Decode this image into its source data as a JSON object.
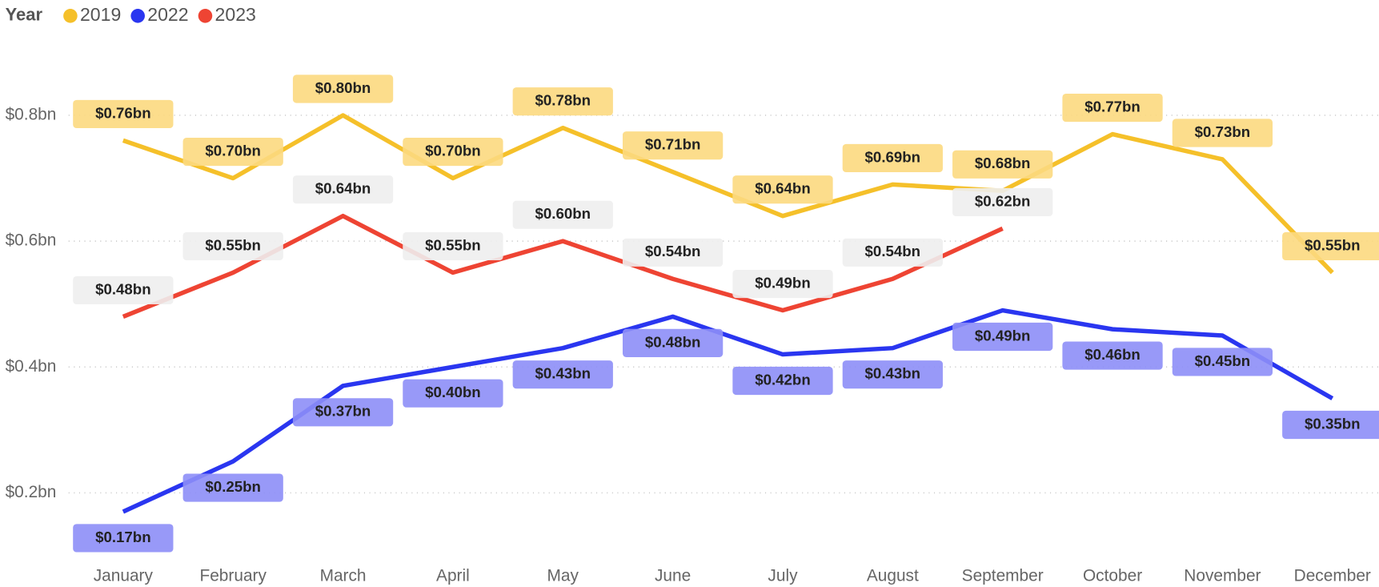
{
  "chart_data": {
    "type": "line",
    "legend_title": "Year",
    "legend": "top-left",
    "categories": [
      "January",
      "February",
      "March",
      "April",
      "May",
      "June",
      "July",
      "August",
      "September",
      "October",
      "November",
      "December"
    ],
    "series": [
      {
        "name": "2019",
        "color": "#f5c02a",
        "label_color": "#fcd97f",
        "values": [
          0.76,
          0.7,
          0.8,
          0.7,
          0.78,
          0.71,
          0.64,
          0.69,
          0.68,
          0.77,
          0.73,
          0.55
        ],
        "value_labels": [
          "$0.76bn",
          "$0.70bn",
          "$0.80bn",
          "$0.70bn",
          "$0.78bn",
          "$0.71bn",
          "$0.64bn",
          "$0.69bn",
          "$0.68bn",
          "$0.77bn",
          "$0.73bn",
          "$0.55bn"
        ]
      },
      {
        "name": "2022",
        "color": "#2a36f0",
        "label_color": "#8d8ef7",
        "values": [
          0.17,
          0.25,
          0.37,
          0.4,
          0.43,
          0.48,
          0.42,
          0.43,
          0.49,
          0.46,
          0.45,
          0.35
        ],
        "value_labels": [
          "$0.17bn",
          "$0.25bn",
          "$0.37bn",
          "$0.40bn",
          "$0.43bn",
          "$0.48bn",
          "$0.42bn",
          "$0.43bn",
          "$0.49bn",
          "$0.46bn",
          "$0.45bn",
          "$0.35bn"
        ]
      },
      {
        "name": "2023",
        "color": "#ee4433",
        "label_color": "#eeeeee",
        "values": [
          0.48,
          0.55,
          0.64,
          0.55,
          0.6,
          0.54,
          0.49,
          0.54,
          0.62,
          null,
          null,
          null
        ],
        "value_labels": [
          "$0.48bn",
          "$0.55bn",
          "$0.64bn",
          "$0.55bn",
          "$0.60bn",
          "$0.54bn",
          "$0.49bn",
          "$0.54bn",
          "$0.62bn",
          null,
          null,
          null
        ]
      }
    ],
    "ylim": [
      0.12,
      0.9
    ],
    "yticks": [
      {
        "value": 0.2,
        "label": "$0.2bn"
      },
      {
        "value": 0.4,
        "label": "$0.4bn"
      },
      {
        "value": 0.6,
        "label": "$0.6bn"
      },
      {
        "value": 0.8,
        "label": "$0.8bn"
      }
    ],
    "grid": true
  }
}
